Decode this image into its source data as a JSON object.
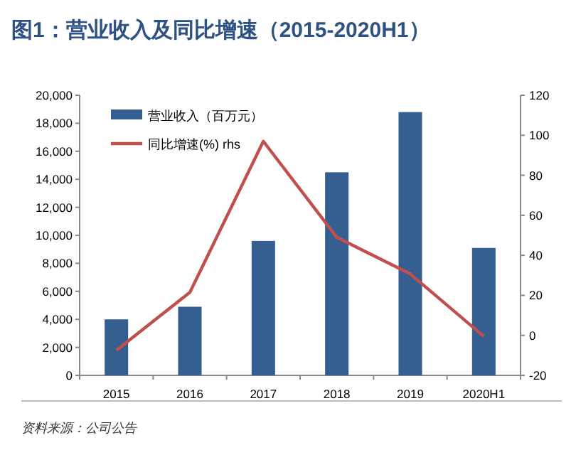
{
  "chart_data": {
    "type": "bar",
    "title": "图1：营业收入及同比增速（2015-2020H1）",
    "categories": [
      "2015",
      "2016",
      "2017",
      "2018",
      "2019",
      "2020H1"
    ],
    "series": [
      {
        "name": "营业收入（百万元）",
        "color": "#365f91",
        "values": [
          4000,
          4900,
          9600,
          14500,
          18800,
          9100
        ]
      },
      {
        "name": "同比增速(%) rhs",
        "type": "line",
        "axis": "y2",
        "color": "#c0504d",
        "values": [
          -7.5,
          21.5,
          97,
          49,
          30.7,
          -0.5
        ]
      }
    ],
    "ylim": [
      0,
      20000
    ],
    "yticks": [
      {
        "value": 0,
        "label": "0"
      },
      {
        "value": 2000,
        "label": "2,000"
      },
      {
        "value": 4000,
        "label": "4,000"
      },
      {
        "value": 6000,
        "label": "6,000"
      },
      {
        "value": 8000,
        "label": "8,000"
      },
      {
        "value": 10000,
        "label": "10,000"
      },
      {
        "value": 12000,
        "label": "12,000"
      },
      {
        "value": 14000,
        "label": "14,000"
      },
      {
        "value": 16000,
        "label": "16,000"
      },
      {
        "value": 18000,
        "label": "18,000"
      },
      {
        "value": 20000,
        "label": "20,000"
      }
    ],
    "y2lim": [
      -20,
      120
    ],
    "y2ticks": [
      -20,
      0,
      20,
      40,
      60,
      80,
      100,
      120
    ],
    "legend": "top left",
    "grid": false,
    "marker": "none",
    "line_style": "solid",
    "annotations": [
      "资料来源：公司公告"
    ]
  }
}
